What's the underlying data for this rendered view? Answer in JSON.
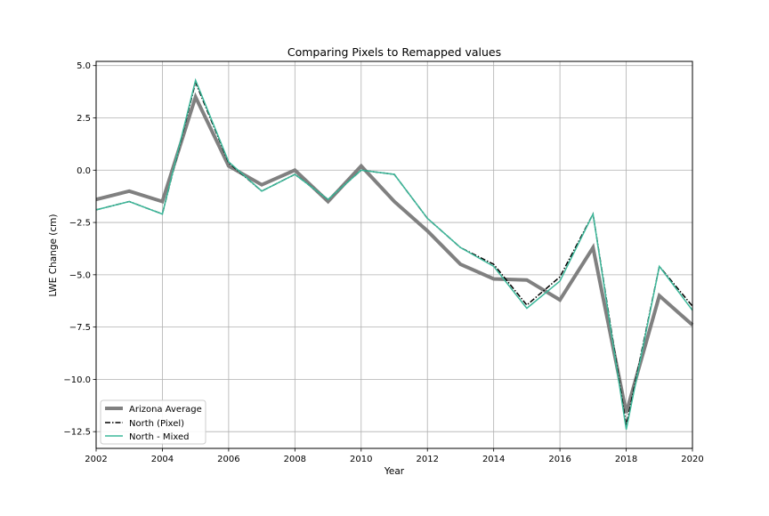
{
  "chart_data": {
    "type": "line",
    "title": "Comparing Pixels to Remapped values",
    "xlabel": "Year",
    "ylabel": "LWE Change (cm)",
    "xlim": [
      2002,
      2020
    ],
    "ylim": [
      -13.3,
      5.2
    ],
    "xticks": [
      2002,
      2004,
      2006,
      2008,
      2010,
      2012,
      2014,
      2016,
      2018,
      2020
    ],
    "yticks": [
      5.0,
      2.5,
      0.0,
      -2.5,
      -5.0,
      -7.5,
      -10.0,
      -12.5
    ],
    "ytick_labels": [
      "5.0",
      "2.5",
      "0.0",
      "−2.5",
      "−5.0",
      "−7.5",
      "−10.0",
      "−12.5"
    ],
    "grid": true,
    "legend_position": "lower-left",
    "x": [
      2002,
      2003,
      2004,
      2005,
      2006,
      2007,
      2008,
      2009,
      2010,
      2011,
      2012,
      2013,
      2014,
      2015,
      2016,
      2017,
      2018,
      2019,
      2020
    ],
    "series": [
      {
        "name": "Arizona Average",
        "color": "#808080",
        "style": "solid-thick",
        "values": [
          -1.4,
          -1.0,
          -1.5,
          3.5,
          0.2,
          -0.7,
          0.0,
          -1.5,
          0.2,
          -1.5,
          -2.9,
          -4.5,
          -5.2,
          -5.25,
          -6.2,
          -3.7,
          -11.6,
          -6.0,
          -7.4
        ]
      },
      {
        "name": "North (Pixel)",
        "color": "#000000",
        "style": "dashdot",
        "values": [
          -1.9,
          -1.5,
          -2.1,
          4.2,
          0.35,
          -1.0,
          -0.2,
          -1.4,
          0.0,
          -0.2,
          -2.3,
          -3.7,
          -4.5,
          -6.45,
          -5.1,
          -2.1,
          -12.2,
          -4.6,
          -6.5
        ]
      },
      {
        "name": "North - Mixed",
        "color": "#3cb89a",
        "style": "solid-thin",
        "values": [
          -1.9,
          -1.5,
          -2.1,
          4.3,
          0.4,
          -1.0,
          -0.2,
          -1.4,
          0.0,
          -0.2,
          -2.3,
          -3.7,
          -4.6,
          -6.6,
          -5.3,
          -2.1,
          -12.4,
          -4.6,
          -6.7
        ]
      }
    ]
  }
}
